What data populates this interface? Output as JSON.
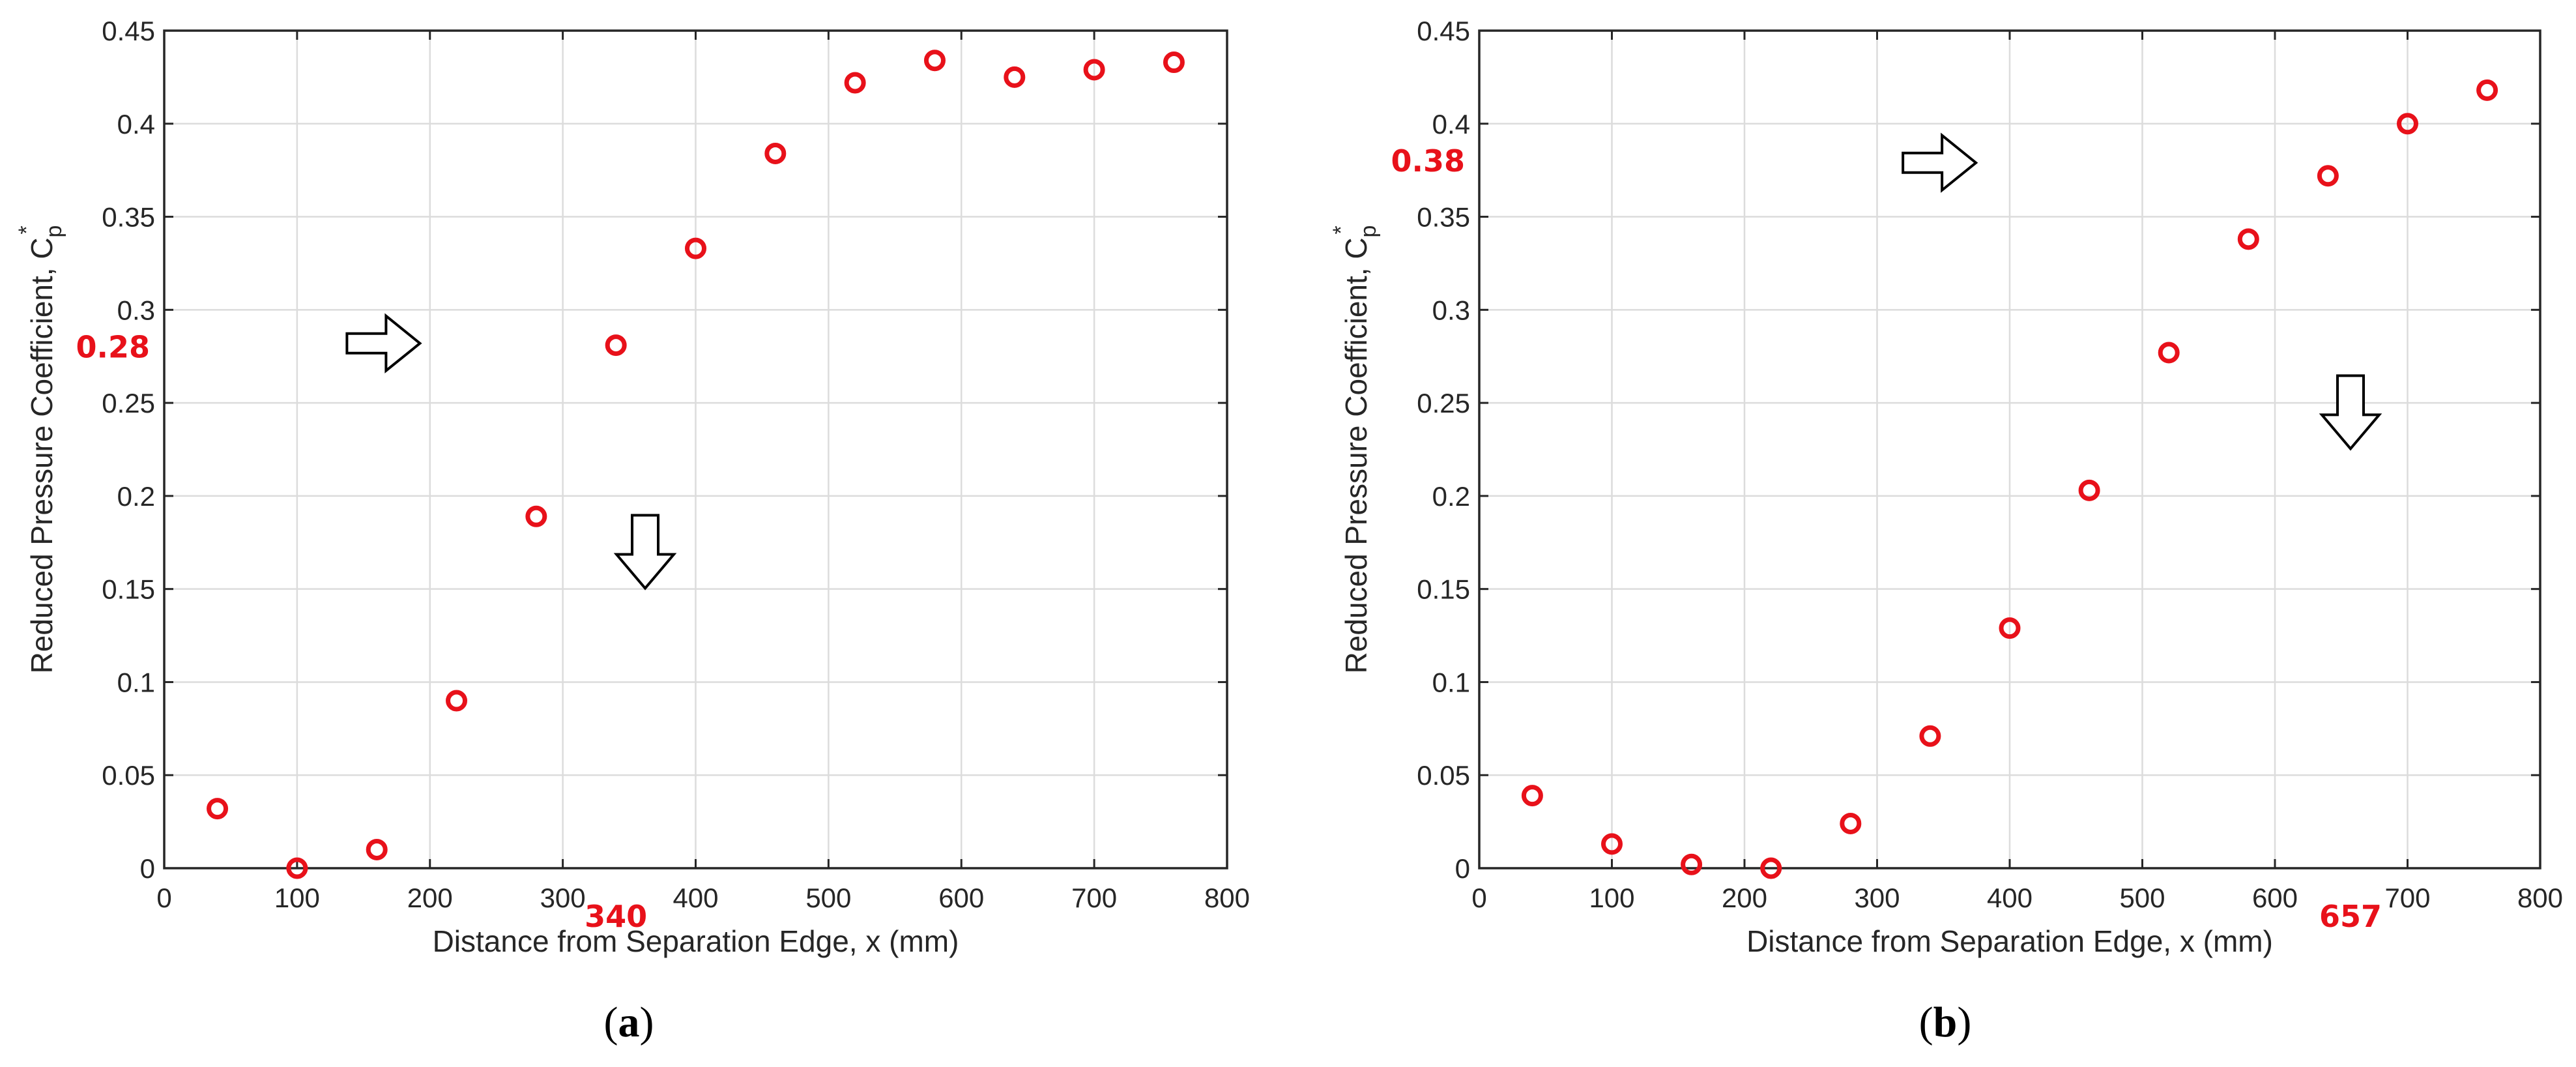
{
  "chart_data": [
    {
      "type": "scatter",
      "panel": "a",
      "caption_letter": "a",
      "xlabel": "Distance from Separation Edge, x (mm)",
      "ylabel": "Reduced Pressure Coefficient, C",
      "ylabel_sub": "p",
      "ylabel_sup": "*",
      "xlim": [
        0,
        800
      ],
      "ylim": [
        0,
        0.45
      ],
      "grid": true,
      "xticks": [
        "0",
        "100",
        "200",
        "300",
        "400",
        "500",
        "600",
        "700",
        "800"
      ],
      "yticks": [
        "0",
        "0.05",
        "0.1",
        "0.15",
        "0.2",
        "0.25",
        "0.3",
        "0.35",
        "0.4",
        "0.45"
      ],
      "marker_color": "#e8111a",
      "x": [
        40,
        100,
        160,
        220,
        280,
        340,
        400,
        460,
        520,
        580,
        640,
        700,
        760
      ],
      "y": [
        0.032,
        0.0,
        0.01,
        0.09,
        0.189,
        0.281,
        0.333,
        0.384,
        0.422,
        0.434,
        0.425,
        0.429,
        0.433
      ],
      "annotations": {
        "y_value": "0.28",
        "x_value": "340"
      },
      "arrows": [
        {
          "direction": "right",
          "x": 165,
          "y": 0.282
        },
        {
          "direction": "down",
          "x": 362,
          "y": 0.17
        }
      ]
    },
    {
      "type": "scatter",
      "panel": "b",
      "caption_letter": "b",
      "xlabel": "Distance from Separation Edge, x (mm)",
      "ylabel": "Reduced Pressure Coefficient, C",
      "ylabel_sub": "p",
      "ylabel_sup": "*",
      "xlim": [
        0,
        800
      ],
      "ylim": [
        0,
        0.45
      ],
      "grid": true,
      "xticks": [
        "0",
        "100",
        "200",
        "300",
        "400",
        "500",
        "600",
        "700",
        "800"
      ],
      "yticks": [
        "0",
        "0.05",
        "0.1",
        "0.15",
        "0.2",
        "0.25",
        "0.3",
        "0.35",
        "0.4",
        "0.45"
      ],
      "marker_color": "#e8111a",
      "x": [
        40,
        100,
        160,
        220,
        280,
        340,
        400,
        460,
        520,
        580,
        640,
        700,
        760
      ],
      "y": [
        0.039,
        0.013,
        0.002,
        0.0,
        0.024,
        0.071,
        0.129,
        0.203,
        0.277,
        0.338,
        0.372,
        0.4,
        0.418
      ],
      "annotations": {
        "y_value": "0.38",
        "x_value": "657"
      },
      "arrows": [
        {
          "direction": "right",
          "x": 347,
          "y": 0.379
        },
        {
          "direction": "down",
          "x": 657,
          "y": 0.245
        }
      ]
    }
  ]
}
